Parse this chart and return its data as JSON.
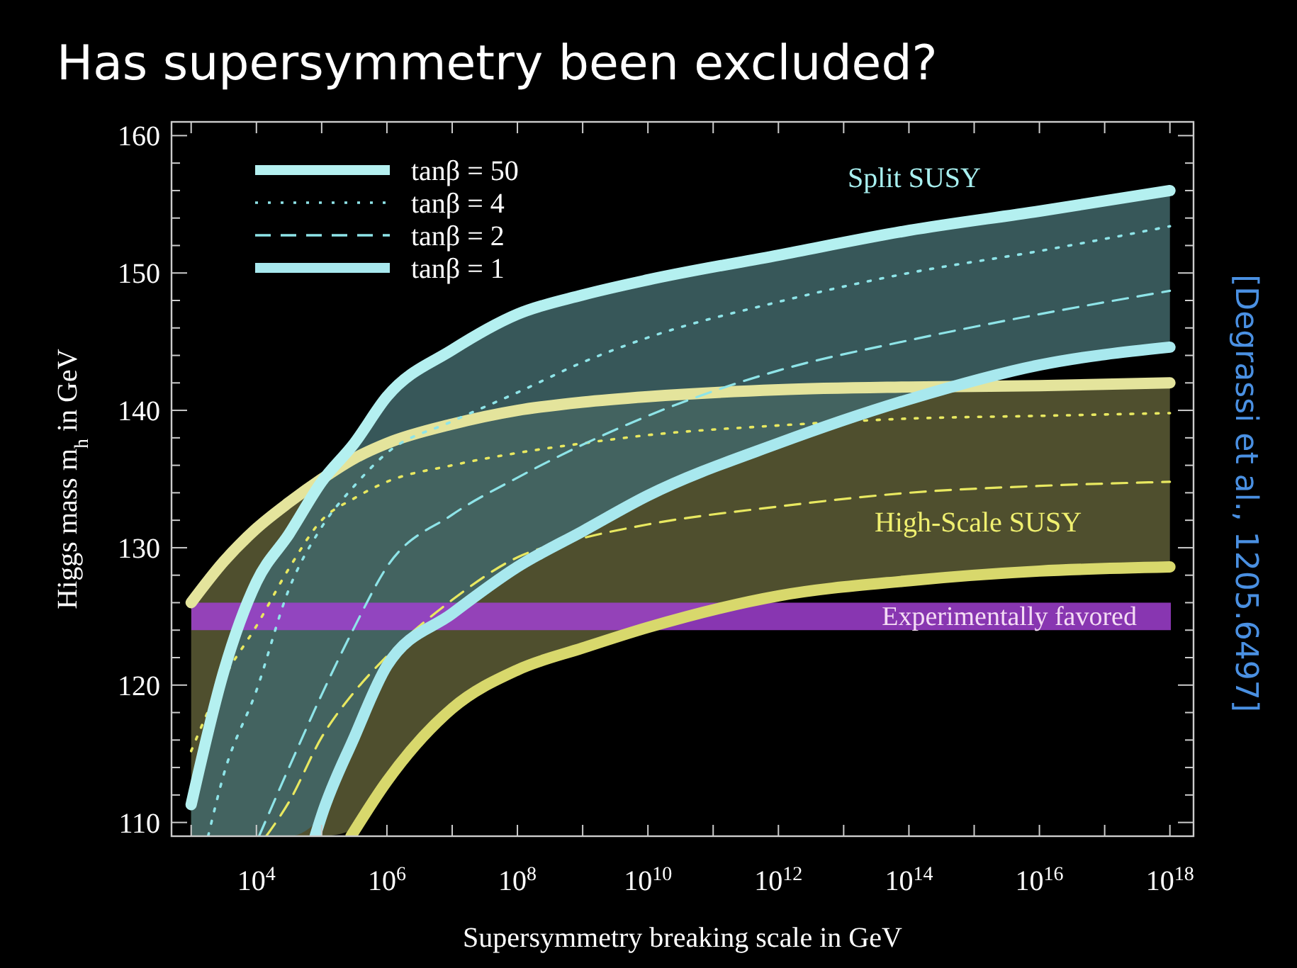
{
  "chart_data": {
    "type": "line",
    "title": "Has supersymmetry been excluded?",
    "xlabel": "Supersymmetry breaking scale in GeV",
    "ylabel": "Higgs mass m$_{h}$ in GeV",
    "log": "x",
    "legend": "top left",
    "xlim": [
      500,
      2.3e+18
    ],
    "ylim": [
      109,
      161
    ],
    "xticks": [
      {
        "value": 1000,
        "label": null
      },
      {
        "value": 10000,
        "label": "10$^{4}$"
      },
      {
        "value": 100000,
        "label": null
      },
      {
        "value": 1000000,
        "label": "10$^{6}$"
      },
      {
        "value": 10000000.0,
        "label": null
      },
      {
        "value": 100000000.0,
        "label": "10$^{8}$"
      },
      {
        "value": 1000000000.0,
        "label": null
      },
      {
        "value": 10000000000.0,
        "label": "10$^{10}$"
      },
      {
        "value": 100000000000.0,
        "label": null
      },
      {
        "value": 1000000000000.0,
        "label": "10$^{12}$"
      },
      {
        "value": 10000000000000.0,
        "label": null
      },
      {
        "value": 100000000000000.0,
        "label": "10$^{14}$"
      },
      {
        "value": 1000000000000000.0,
        "label": null
      },
      {
        "value": 1e+16,
        "label": "10$^{16}$"
      },
      {
        "value": 1e+17,
        "label": null
      },
      {
        "value": 1e+18,
        "label": "10$^{18}$"
      }
    ],
    "yticks": [
      110,
      {
        "value": 112,
        "label": null
      },
      {
        "value": 114,
        "label": null
      },
      {
        "value": 116,
        "label": null
      },
      {
        "value": 118,
        "label": null
      },
      120,
      {
        "value": 122,
        "label": null
      },
      {
        "value": 124,
        "label": null
      },
      {
        "value": 126,
        "label": null
      },
      {
        "value": 128,
        "label": null
      },
      130,
      {
        "value": 132,
        "label": null
      },
      {
        "value": 134,
        "label": null
      },
      {
        "value": 136,
        "label": null
      },
      {
        "value": 138,
        "label": null
      },
      140,
      {
        "value": 142,
        "label": null
      },
      {
        "value": 144,
        "label": null
      },
      {
        "value": 146,
        "label": null
      },
      {
        "value": 148,
        "label": null
      },
      150,
      {
        "value": 152,
        "label": null
      },
      {
        "value": 154,
        "label": null
      },
      {
        "value": 156,
        "label": null
      },
      {
        "value": 158,
        "label": null
      },
      160
    ],
    "bands": [
      {
        "axis": "y",
        "from": 124,
        "to": 126,
        "label": "Experimentally favored",
        "color": "#a040d0"
      }
    ],
    "annotations": [
      "Split SUSY",
      "High-Scale SUSY",
      "[Degrassi et al., 1205.6497]"
    ],
    "series": [
      {
        "color": "#e4e49c",
        "line_style": "solid",
        "x": [
          1000,
          3162,
          10000,
          31623,
          100000,
          316228,
          1000000,
          10000000.0,
          100000000.0,
          1000000000.0,
          10000000000.0,
          1000000000000.0,
          100000000000000.0,
          1e+16,
          1e+18
        ],
        "values": [
          126,
          129,
          131.4,
          133.3,
          135,
          136.5,
          137.6,
          139,
          140,
          140.6,
          141,
          141.5,
          141.7,
          141.8,
          142
        ]
      },
      {
        "color": "#e8e860",
        "line_style": "dotted",
        "x": [
          1000,
          3162,
          10000,
          31623,
          100000,
          316228,
          1000000,
          10000000.0,
          100000000.0,
          1000000000.0,
          10000000000.0,
          1000000000000.0,
          100000000000000.0,
          1e+16,
          1e+18
        ],
        "values": [
          115.2,
          120.5,
          124.3,
          128.5,
          132,
          133.6,
          134.8,
          136,
          136.9,
          137.6,
          138.2,
          138.9,
          139.4,
          139.6,
          139.8
        ],
        "upper": [
          126,
          129,
          131.4,
          133.3,
          135,
          136.5,
          137.6,
          139,
          140,
          140.6,
          141,
          141.5,
          141.7,
          141.8,
          142
        ],
        "lower": [
          109,
          109,
          109,
          109,
          109,
          109.5,
          113,
          118.3,
          121.1,
          122.7,
          124.2,
          126.5,
          127.6,
          128.3,
          128.6
        ]
      },
      {
        "color": "#e8e860",
        "line_style": "dashed",
        "x": [
          14125,
          31623,
          100000,
          316228,
          1000000,
          10000000.0,
          100000000.0,
          1000000000.0,
          10000000000.0,
          1000000000000.0,
          100000000000000.0,
          1e+16,
          1e+18
        ],
        "values": [
          109,
          111.5,
          116.2,
          119.5,
          122.1,
          126.2,
          129.3,
          130.7,
          131.7,
          133,
          134,
          134.5,
          134.8
        ]
      },
      {
        "color": "#d8d86c",
        "line_style": "solid",
        "x": [
          281838,
          1000000,
          10000000.0,
          100000000.0,
          1000000000.0,
          10000000000.0,
          1000000000000.0,
          100000000000000.0,
          1e+16,
          1e+18
        ],
        "values": [
          109,
          113,
          118.3,
          121.1,
          122.7,
          124.2,
          126.5,
          127.6,
          128.3,
          128.6
        ]
      },
      {
        "name": "tanβ = 50",
        "color": "#b4f0f0",
        "line_style": "solid",
        "x": [
          1000,
          3162,
          10000,
          31623,
          100000,
          316228,
          1000000,
          10000000.0,
          100000000.0,
          1000000000.0,
          10000000000.0,
          1000000000000.0,
          100000000000000.0,
          1e+16,
          1e+18
        ],
        "values": [
          111.3,
          121,
          127.5,
          131,
          134.8,
          137.6,
          141,
          144.4,
          147,
          148.4,
          149.5,
          151.3,
          153.1,
          154.5,
          156
        ]
      },
      {
        "name": "tanβ = 4",
        "color": "#8ee4e8",
        "line_style": "dotted",
        "x": [
          1000,
          1820,
          3162,
          10000,
          31623,
          100000,
          316228,
          1000000,
          10000000.0,
          100000000.0,
          1000000000.0,
          10000000000.0,
          1000000000000.0,
          100000000000000.0,
          1e+16,
          1e+18
        ],
        "values": [
          null,
          109,
          113.5,
          119.6,
          127,
          131.5,
          134.5,
          136.9,
          139.2,
          141.3,
          143.5,
          145.3,
          147.9,
          150,
          151.6,
          153.4
        ],
        "upper": [
          111.3,
          116,
          121,
          127.5,
          131,
          134.8,
          137.6,
          141,
          144.4,
          147,
          148.4,
          149.5,
          151.3,
          153.1,
          154.5,
          156
        ],
        "lower": [
          109,
          109,
          109,
          109,
          109,
          110.5,
          116.2,
          121.4,
          125.2,
          128.6,
          131.2,
          133.8,
          137.6,
          140.8,
          143.3,
          144.6
        ]
      },
      {
        "name": "tanβ = 2",
        "color": "#8ee4e8",
        "line_style": "dashed",
        "x": [
          10965,
          31623,
          100000,
          316228,
          1000000,
          10000000.0,
          100000000.0,
          1000000000.0,
          10000000000.0,
          1000000000000.0,
          100000000000000.0,
          1e+16,
          1e+18
        ],
        "values": [
          109,
          114,
          119.3,
          124.2,
          128.6,
          132.4,
          135.1,
          137.5,
          139.6,
          142.9,
          145.1,
          147,
          148.7
        ]
      },
      {
        "name": "tanβ = 1",
        "color": "#a8e8ee",
        "line_style": "solid",
        "x": [
          79433,
          100000,
          316228,
          1000000,
          10000000.0,
          100000000.0,
          1000000000.0,
          10000000000.0,
          1000000000000.0,
          100000000000000.0,
          1e+16,
          1e+18
        ],
        "values": [
          109,
          110.5,
          116.2,
          121.4,
          125.2,
          128.6,
          131.2,
          133.8,
          137.6,
          140.8,
          143.3,
          144.6
        ]
      }
    ]
  }
}
